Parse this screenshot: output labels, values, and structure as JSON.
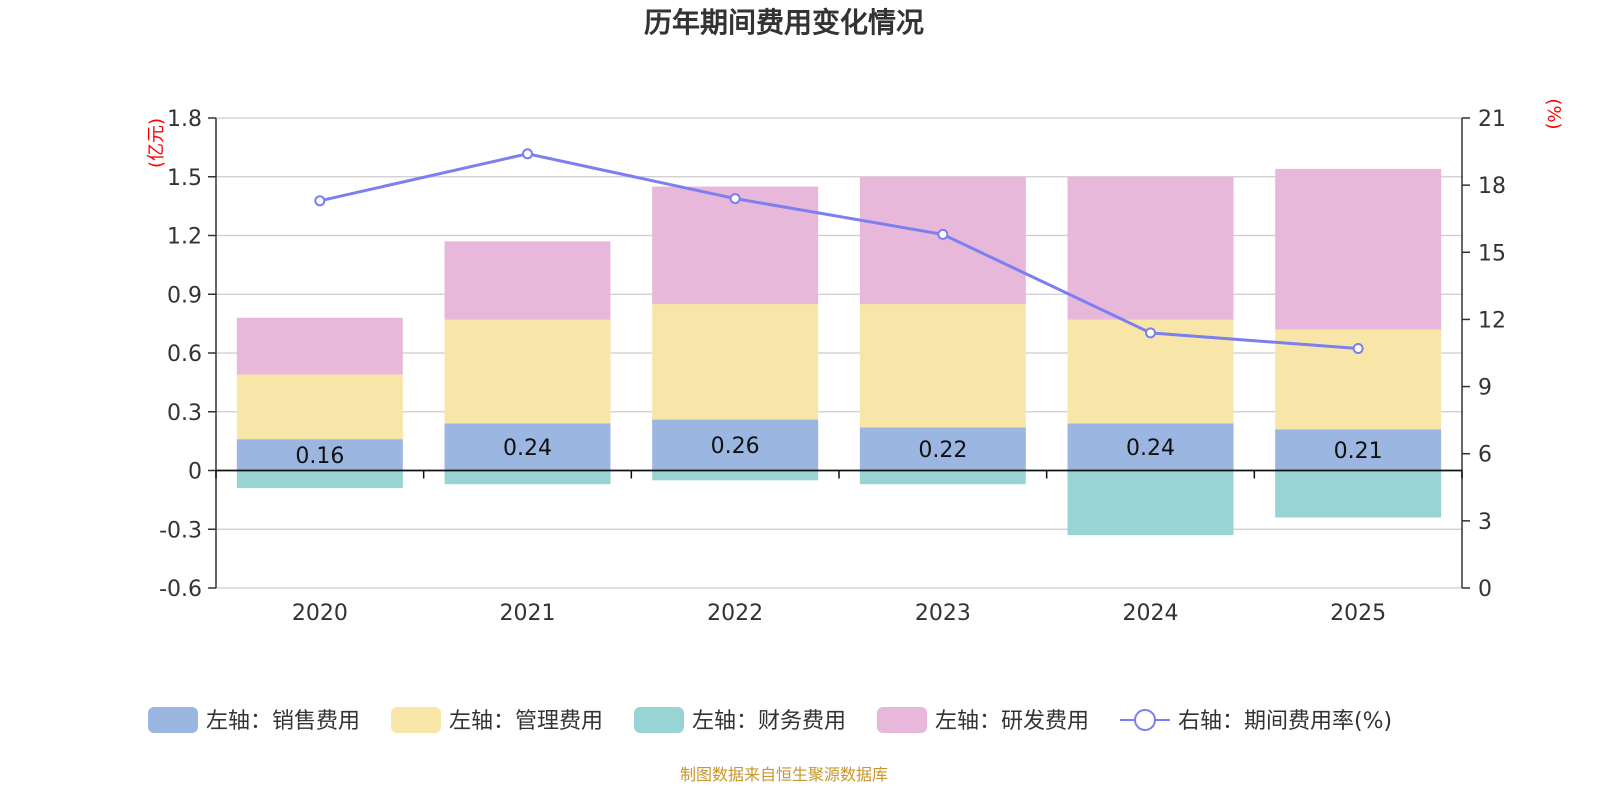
{
  "chart_data": {
    "type": "bar",
    "stacked": true,
    "title": "历年期间费用变化情况",
    "categories": [
      "2020",
      "2021",
      "2022",
      "2023",
      "2024",
      "2025"
    ],
    "left_axis": {
      "unit": "(亿元)",
      "ylim": [
        -0.6,
        1.8
      ],
      "ticks": [
        "-0.6",
        "-0.3",
        "0",
        "0.3",
        "0.6",
        "0.9",
        "1.2",
        "1.5",
        "1.8"
      ]
    },
    "right_axis": {
      "unit": "(%)",
      "ylim": [
        0,
        21
      ],
      "ticks": [
        "0",
        "3",
        "6",
        "9",
        "12",
        "15",
        "18",
        "21"
      ]
    },
    "series": [
      {
        "name": "左轴：销售费用",
        "axis": "left",
        "color": "#9bb6e0",
        "values": [
          0.16,
          0.24,
          0.26,
          0.22,
          0.24,
          0.21
        ],
        "labels": [
          "0.16",
          "0.24",
          "0.26",
          "0.22",
          "0.24",
          "0.21"
        ]
      },
      {
        "name": "左轴：管理费用",
        "axis": "left",
        "color": "#f8e6a8",
        "values": [
          0.33,
          0.53,
          0.59,
          0.63,
          0.53,
          0.51
        ]
      },
      {
        "name": "左轴：财务费用",
        "axis": "left",
        "color": "#98d4d4",
        "values": [
          -0.09,
          -0.07,
          -0.05,
          -0.07,
          -0.33,
          -0.24
        ]
      },
      {
        "name": "左轴：研发费用",
        "axis": "left",
        "color": "#e8b8da",
        "values": [
          0.29,
          0.4,
          0.6,
          0.65,
          0.73,
          0.82
        ]
      },
      {
        "name": "右轴：期间费用率(%)",
        "axis": "right",
        "type": "line",
        "color": "#7b7ff0",
        "values": [
          17.3,
          19.4,
          17.4,
          15.8,
          11.4,
          10.7
        ]
      }
    ],
    "source": "制图数据来自恒生聚源数据库"
  }
}
